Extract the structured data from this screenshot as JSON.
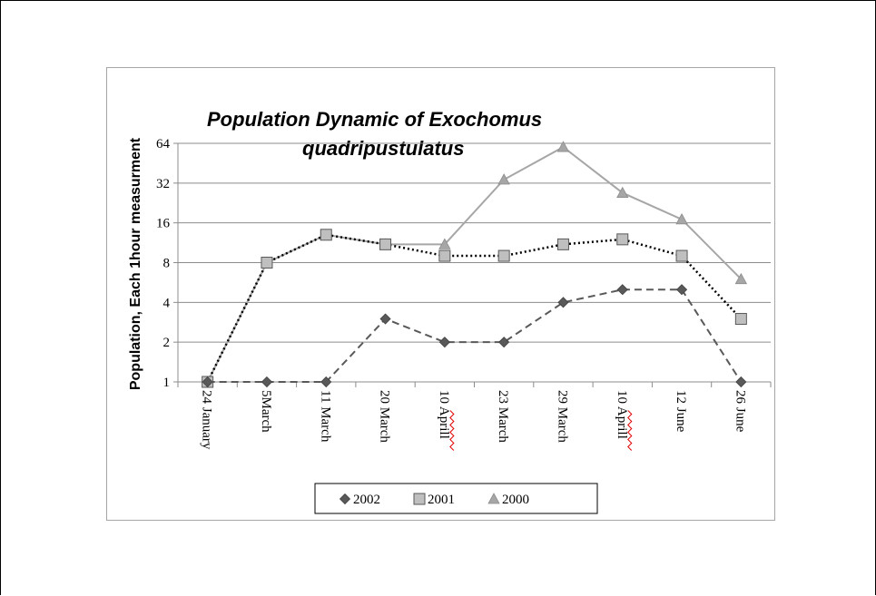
{
  "chart_data": {
    "type": "line",
    "title_line1": "Population Dynamic of Exochomus",
    "title_line2": "quadripustulatus",
    "ylabel": "Population, Each 1hour measurment",
    "xlabel": "",
    "yscale": "log2",
    "ylim": [
      1,
      64
    ],
    "yticks": [
      1,
      2,
      4,
      8,
      16,
      32,
      64
    ],
    "grid": true,
    "legend_position": "bottom",
    "categories": [
      "24 January",
      "5March",
      "11 March",
      "20 March",
      "10 Aprill",
      "23 March",
      "29 March",
      "10 Aprill",
      "12 June",
      "26 June"
    ],
    "series": [
      {
        "name": "2002",
        "marker": "diamond",
        "line": "dashed",
        "color": "#595959",
        "values": [
          1,
          1,
          1,
          3,
          2,
          2,
          4,
          5,
          5,
          1
        ]
      },
      {
        "name": "2001",
        "marker": "square",
        "line": "dotted",
        "color": "#000000",
        "values": [
          1,
          8,
          13,
          11,
          9,
          9,
          11,
          12,
          9,
          3
        ]
      },
      {
        "name": "2000",
        "marker": "triangle",
        "line": "solid",
        "color": "#a6a6a6",
        "values": [
          1,
          8,
          13,
          11,
          11,
          34,
          60,
          27,
          17,
          6
        ]
      }
    ]
  }
}
